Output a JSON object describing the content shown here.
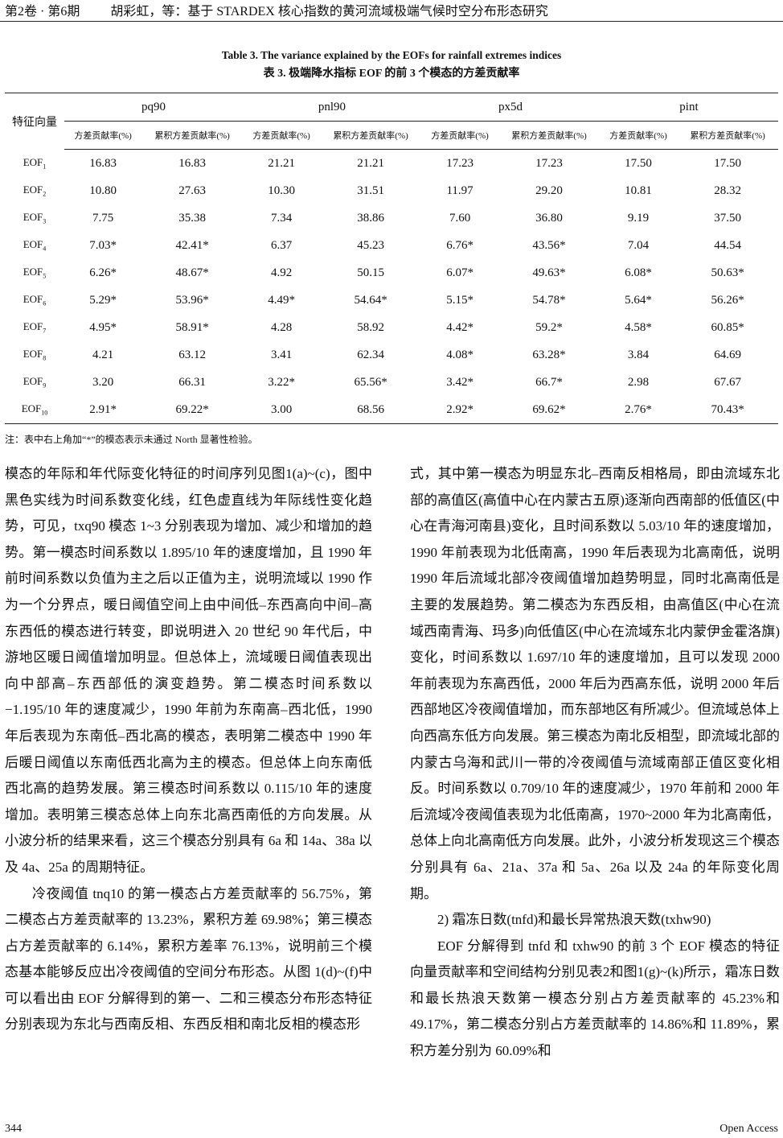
{
  "header": {
    "volume": "第2卷 · 第6期",
    "running_title": "胡彩虹，等：基于 STARDEX 核心指数的黄河流域极端气候时空分布形态研究"
  },
  "table": {
    "caption_en": "Table 3. The variance explained by the EOFs for rainfall extremes indices",
    "caption_zh": "表 3. 极端降水指标 EOF 的前 3 个模态的方差贡献率",
    "row_header": "特征向量",
    "groups": [
      "pq90",
      "pnl90",
      "px5d",
      "pint"
    ],
    "subheaders": [
      "方差贡献率(%)",
      "累积方差贡献率(%)",
      "方差贡献率(%)",
      "累积方差贡献率(%)",
      "方差贡献率(%)",
      "累积方差贡献率(%)",
      "方差贡献率(%)",
      "累积方差贡献率(%)"
    ],
    "rows": [
      {
        "label": "EOF",
        "sub": "1",
        "values": [
          "16.83",
          "16.83",
          "21.21",
          "21.21",
          "17.23",
          "17.23",
          "17.50",
          "17.50"
        ]
      },
      {
        "label": "EOF",
        "sub": "2",
        "values": [
          "10.80",
          "27.63",
          "10.30",
          "31.51",
          "11.97",
          "29.20",
          "10.81",
          "28.32"
        ]
      },
      {
        "label": "EOF",
        "sub": "3",
        "values": [
          "7.75",
          "35.38",
          "7.34",
          "38.86",
          "7.60",
          "36.80",
          "9.19",
          "37.50"
        ]
      },
      {
        "label": "EOF",
        "sub": "4",
        "values": [
          "7.03*",
          "42.41*",
          "6.37",
          "45.23",
          "6.76*",
          "43.56*",
          "7.04",
          "44.54"
        ]
      },
      {
        "label": "EOF",
        "sub": "5",
        "values": [
          "6.26*",
          "48.67*",
          "4.92",
          "50.15",
          "6.07*",
          "49.63*",
          "6.08*",
          "50.63*"
        ]
      },
      {
        "label": "EOF",
        "sub": "6",
        "values": [
          "5.29*",
          "53.96*",
          "4.49*",
          "54.64*",
          "5.15*",
          "54.78*",
          "5.64*",
          "56.26*"
        ]
      },
      {
        "label": "EOF",
        "sub": "7",
        "values": [
          "4.95*",
          "58.91*",
          "4.28",
          "58.92",
          "4.42*",
          "59.2*",
          "4.58*",
          "60.85*"
        ]
      },
      {
        "label": "EOF",
        "sub": "8",
        "values": [
          "4.21",
          "63.12",
          "3.41",
          "62.34",
          "4.08*",
          "63.28*",
          "3.84",
          "64.69"
        ]
      },
      {
        "label": "EOF",
        "sub": "9",
        "values": [
          "3.20",
          "66.31",
          "3.22*",
          "65.56*",
          "3.42*",
          "66.7*",
          "2.98",
          "67.67"
        ]
      },
      {
        "label": "EOF",
        "sub": "10",
        "values": [
          "2.91*",
          "69.22*",
          "3.00",
          "68.56",
          "2.92*",
          "69.62*",
          "2.76*",
          "70.43*"
        ]
      }
    ],
    "note": "注：表中右上角加“*”的模态表示未通过 North 显著性检验。"
  },
  "body": {
    "left": [
      {
        "indent": false,
        "text": "模态的年际和年代际变化特征的时间序列见图1(a)~(c)，图中黑色实线为时间系数变化线，红色虚直线为年际线性变化趋势，可见，txq90 模态 1~3 分别表现为增加、减少和增加的趋势。第一模态时间系数以 1.895/10 年的速度增加，且 1990 年前时间系数以负值为主之后以正值为主，说明流域以 1990 作为一个分界点，暖日阈值空间上由中间低–东西高向中间–高东西低的模态进行转变，即说明进入 20 世纪 90 年代后，中游地区暖日阈值增加明显。但总体上，流域暖日阈值表现出向中部高–东西部低的演变趋势。第二模态时间系数以−1.195/10 年的速度减少，1990 年前为东南高–西北低，1990 年后表现为东南低–西北高的模态，表明第二模态中 1990 年后暖日阈值以东南低西北高为主的模态。但总体上向东南低西北高的趋势发展。第三模态时间系数以 0.115/10 年的速度增加。表明第三模态总体上向东北高西南低的方向发展。从小波分析的结果来看，这三个模态分别具有 6a 和 14a、38a 以及 4a、25a 的周期特征。"
      },
      {
        "indent": true,
        "text": "冷夜阈值 tnq10 的第一模态占方差贡献率的 56.75%，第二模态占方差贡献率的 13.23%，累积方差 69.98%；第三模态占方差贡献率的 6.14%，累积方差率 76.13%，说明前三个模态基本能够反应出冷夜阈值的空间分布形态。从图 1(d)~(f)中可以看出由 EOF 分解得到的第一、二和三模态分布形态特征分别表现为东北与西南反相、东西反相和南北反相的模态形"
      }
    ],
    "right": [
      {
        "indent": false,
        "text": "式，其中第一模态为明显东北–西南反相格局，即由流域东北部的高值区(高值中心在内蒙古五原)逐渐向西南部的低值区(中心在青海河南县)变化，且时间系数以 5.03/10 年的速度增加，1990 年前表现为北低南高，1990 年后表现为北高南低，说明 1990 年后流域北部冷夜阈值增加趋势明显，同时北高南低是主要的发展趋势。第二模态为东西反相，由高值区(中心在流域西南青海、玛多)向低值区(中心在流域东北内蒙伊金霍洛旗)变化，时间系数以 1.697/10 年的速度增加，且可以发现 2000 年前表现为东高西低，2000 年后为西高东低，说明 2000 年后西部地区冷夜阈值增加，而东部地区有所减少。但流域总体上向西高东低方向发展。第三模态为南北反相型，即流域北部的内蒙古乌海和武川一带的冷夜阈值与流域南部正值区变化相反。时间系数以 0.709/10 年的速度减少，1970 年前和 2000 年后流域冷夜阈值表现为北低南高，1970~2000 年为北高南低，总体上向北高南低方向发展。此外，小波分析发现这三个模态分别具有 6a、21a、37a 和 5a、26a 以及 24a 的年际变化周期。"
      },
      {
        "indent": true,
        "text": "2) 霜冻日数(tnfd)和最长异常热浪天数(txhw90)"
      },
      {
        "indent": true,
        "text": "EOF 分解得到 tnfd 和 txhw90 的前 3 个 EOF 模态的特征向量贡献率和空间结构分别见表2和图1(g)~(k)所示，霜冻日数和最长热浪天数第一模态分别占方差贡献率的 45.23%和 49.17%，第二模态分别占方差贡献率的 14.86%和 11.89%，累积方差分别为 60.09%和"
      }
    ]
  },
  "footer": {
    "page": "344",
    "publisher": "Open Access"
  }
}
